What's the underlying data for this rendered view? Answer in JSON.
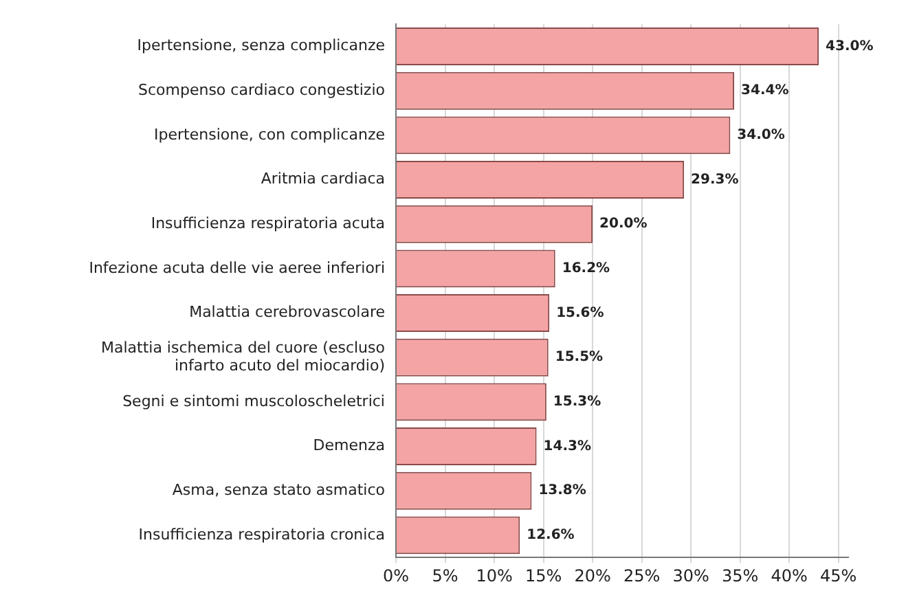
{
  "chart_data": {
    "type": "bar",
    "orientation": "horizontal",
    "categories": [
      "Ipertensione, senza complicanze",
      "Scompenso cardiaco congestizio",
      "Ipertensione, con complicanze",
      "Aritmia cardiaca",
      "Insufficienza respiratoria acuta",
      "Infezione acuta delle vie aeree inferiori",
      "Malattia cerebrovascolare",
      "Malattia ischemica del cuore (escluso infarto acuto del miocardio)",
      "Segni e sintomi muscoloscheletrici",
      "Demenza",
      "Asma, senza stato asmatico",
      "Insufficienza respiratoria cronica"
    ],
    "values": [
      43.0,
      34.4,
      34.0,
      29.3,
      20.0,
      16.2,
      15.6,
      15.5,
      15.3,
      14.3,
      13.8,
      12.6
    ],
    "value_labels": [
      "43.0%",
      "34.4%",
      "34.0%",
      "29.3%",
      "20.0%",
      "16.2%",
      "15.6%",
      "15.5%",
      "15.3%",
      "14.3%",
      "13.8%",
      "12.6%"
    ],
    "color": "#f4a4a4",
    "xlim": [
      0,
      46
    ],
    "xticks": [
      {
        "value": 0,
        "label": "0%"
      },
      {
        "value": 5,
        "label": "5%"
      },
      {
        "value": 10,
        "label": "10%"
      },
      {
        "value": 15,
        "label": "15%"
      },
      {
        "value": 20,
        "label": "20%"
      },
      {
        "value": 25,
        "label": "25%"
      },
      {
        "value": 30,
        "label": "30%"
      },
      {
        "value": 35,
        "label": "35%"
      },
      {
        "value": 40,
        "label": "40%"
      },
      {
        "value": 45,
        "label": "45%"
      }
    ],
    "grid": "x",
    "legend": false
  }
}
